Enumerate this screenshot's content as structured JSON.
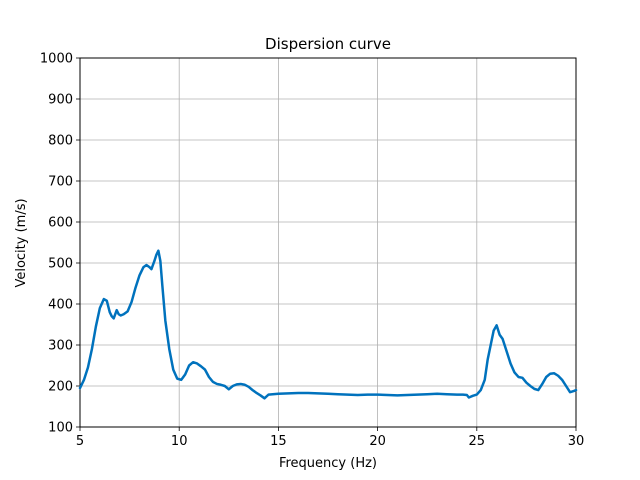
{
  "chart_data": {
    "type": "line",
    "title": "Dispersion curve",
    "xlabel": "Frequency (Hz)",
    "ylabel": "Velocity (m/s)",
    "xlim": [
      5,
      30
    ],
    "ylim": [
      100,
      1000
    ],
    "xticks": [
      5,
      10,
      15,
      20,
      25,
      30
    ],
    "yticks": [
      100,
      200,
      300,
      400,
      500,
      600,
      700,
      800,
      900,
      1000
    ],
    "grid": true,
    "line_color": "#0072bd",
    "series": [
      {
        "x": [
          5.0,
          5.2,
          5.4,
          5.6,
          5.8,
          6.0,
          6.2,
          6.35,
          6.5,
          6.6,
          6.7,
          6.85,
          6.95,
          7.05,
          7.2,
          7.4,
          7.6,
          7.8,
          8.0,
          8.2,
          8.35,
          8.5,
          8.6,
          8.75,
          8.85,
          8.95,
          9.05,
          9.15,
          9.3,
          9.5,
          9.7,
          9.9,
          10.1,
          10.3,
          10.5,
          10.7,
          10.9,
          11.1,
          11.3,
          11.5,
          11.7,
          11.9,
          12.1,
          12.3,
          12.5,
          12.7,
          12.9,
          13.1,
          13.3,
          13.5,
          13.7,
          13.9,
          14.1,
          14.3,
          14.5,
          15.0,
          15.5,
          16.0,
          16.5,
          17.0,
          17.5,
          18.0,
          18.5,
          19.0,
          19.5,
          20.0,
          20.5,
          21.0,
          21.5,
          22.0,
          22.5,
          23.0,
          23.5,
          24.0,
          24.3,
          24.5,
          24.6,
          24.8,
          25.0,
          25.2,
          25.4,
          25.55,
          25.7,
          25.85,
          26.0,
          26.15,
          26.3,
          26.5,
          26.7,
          26.9,
          27.1,
          27.3,
          27.5,
          27.7,
          27.9,
          28.1,
          28.3,
          28.5,
          28.7,
          28.9,
          29.1,
          29.3,
          29.5,
          29.7,
          29.9,
          30.0
        ],
        "y": [
          195,
          215,
          245,
          290,
          345,
          390,
          412,
          408,
          380,
          370,
          365,
          385,
          375,
          372,
          375,
          382,
          405,
          440,
          470,
          490,
          495,
          490,
          485,
          505,
          520,
          530,
          505,
          445,
          360,
          290,
          240,
          218,
          215,
          228,
          250,
          258,
          255,
          248,
          240,
          222,
          210,
          205,
          203,
          200,
          192,
          200,
          204,
          205,
          203,
          198,
          190,
          183,
          177,
          170,
          179,
          181,
          182,
          183,
          183,
          182,
          181,
          180,
          179,
          178,
          179,
          179,
          178,
          177,
          178,
          179,
          180,
          181,
          180,
          179,
          179,
          178,
          172,
          176,
          179,
          190,
          215,
          265,
          300,
          335,
          348,
          325,
          315,
          285,
          255,
          233,
          222,
          220,
          208,
          200,
          193,
          190,
          205,
          222,
          230,
          231,
          225,
          215,
          200,
          185,
          188,
          190
        ]
      }
    ]
  }
}
